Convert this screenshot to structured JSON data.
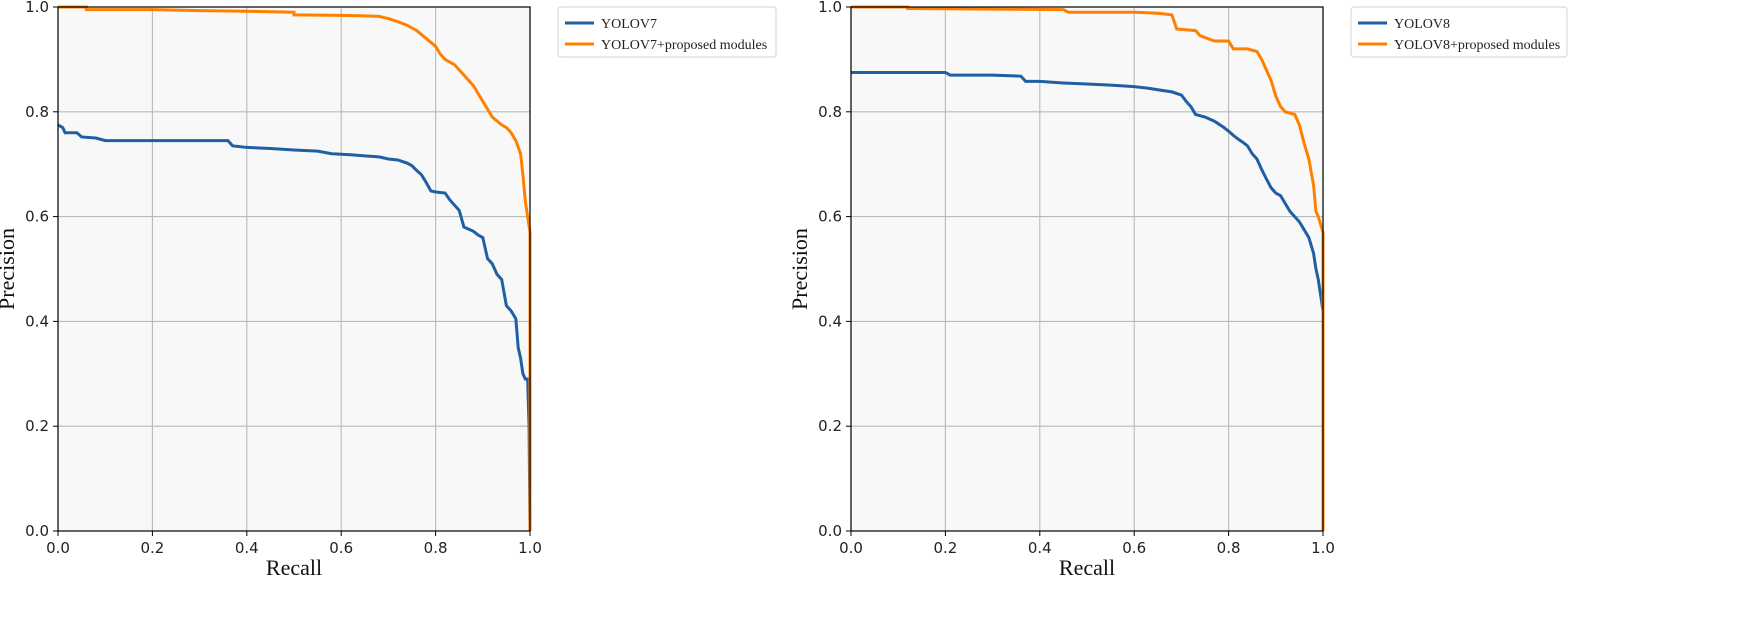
{
  "chart_data": [
    {
      "type": "line",
      "title": "",
      "xlabel": "Recall",
      "ylabel": "Precision",
      "xlim": [
        0.0,
        1.0
      ],
      "ylim": [
        0.0,
        1.0
      ],
      "xticks": [
        "0.0",
        "0.2",
        "0.4",
        "0.6",
        "0.8",
        "1.0"
      ],
      "yticks": [
        "0.0",
        "0.2",
        "0.4",
        "0.6",
        "0.8",
        "1.0"
      ],
      "grid": true,
      "legend_position": "outside-right-top",
      "series": [
        {
          "name": "YOLOV7",
          "color": "#1f5fa3",
          "points": [
            [
              0.0,
              0.775
            ],
            [
              0.01,
              0.77
            ],
            [
              0.015,
              0.76
            ],
            [
              0.04,
              0.76
            ],
            [
              0.05,
              0.752
            ],
            [
              0.08,
              0.75
            ],
            [
              0.1,
              0.745
            ],
            [
              0.2,
              0.745
            ],
            [
              0.36,
              0.745
            ],
            [
              0.37,
              0.735
            ],
            [
              0.4,
              0.732
            ],
            [
              0.45,
              0.73
            ],
            [
              0.5,
              0.727
            ],
            [
              0.55,
              0.725
            ],
            [
              0.58,
              0.72
            ],
            [
              0.62,
              0.718
            ],
            [
              0.65,
              0.716
            ],
            [
              0.68,
              0.714
            ],
            [
              0.7,
              0.71
            ],
            [
              0.72,
              0.708
            ],
            [
              0.74,
              0.702
            ],
            [
              0.75,
              0.697
            ],
            [
              0.76,
              0.688
            ],
            [
              0.77,
              0.68
            ],
            [
              0.78,
              0.665
            ],
            [
              0.79,
              0.649
            ],
            [
              0.8,
              0.647
            ],
            [
              0.82,
              0.645
            ],
            [
              0.83,
              0.632
            ],
            [
              0.84,
              0.622
            ],
            [
              0.85,
              0.612
            ],
            [
              0.86,
              0.58
            ],
            [
              0.87,
              0.576
            ],
            [
              0.88,
              0.572
            ],
            [
              0.89,
              0.565
            ],
            [
              0.9,
              0.56
            ],
            [
              0.91,
              0.52
            ],
            [
              0.92,
              0.51
            ],
            [
              0.93,
              0.49
            ],
            [
              0.94,
              0.48
            ],
            [
              0.95,
              0.43
            ],
            [
              0.96,
              0.42
            ],
            [
              0.97,
              0.405
            ],
            [
              0.975,
              0.35
            ],
            [
              0.98,
              0.33
            ],
            [
              0.985,
              0.3
            ],
            [
              0.99,
              0.29
            ],
            [
              0.995,
              0.29
            ],
            [
              0.998,
              0.2
            ],
            [
              1.0,
              0.0
            ]
          ]
        },
        {
          "name": "YOLOV7+proposed modules",
          "color": "#ff8000",
          "points": [
            [
              0.0,
              1.0
            ],
            [
              0.06,
              1.0
            ],
            [
              0.06,
              0.995
            ],
            [
              0.2,
              0.995
            ],
            [
              0.3,
              0.993
            ],
            [
              0.4,
              0.992
            ],
            [
              0.5,
              0.99
            ],
            [
              0.5,
              0.985
            ],
            [
              0.6,
              0.984
            ],
            [
              0.65,
              0.983
            ],
            [
              0.68,
              0.982
            ],
            [
              0.7,
              0.978
            ],
            [
              0.72,
              0.972
            ],
            [
              0.74,
              0.965
            ],
            [
              0.76,
              0.955
            ],
            [
              0.78,
              0.94
            ],
            [
              0.8,
              0.925
            ],
            [
              0.81,
              0.91
            ],
            [
              0.82,
              0.9
            ],
            [
              0.84,
              0.89
            ],
            [
              0.86,
              0.87
            ],
            [
              0.88,
              0.85
            ],
            [
              0.9,
              0.82
            ],
            [
              0.92,
              0.79
            ],
            [
              0.94,
              0.775
            ],
            [
              0.95,
              0.77
            ],
            [
              0.96,
              0.76
            ],
            [
              0.97,
              0.745
            ],
            [
              0.98,
              0.72
            ],
            [
              0.985,
              0.68
            ],
            [
              0.99,
              0.63
            ],
            [
              0.995,
              0.6
            ],
            [
              1.0,
              0.57
            ],
            [
              1.0,
              0.0
            ]
          ]
        }
      ]
    },
    {
      "type": "line",
      "title": "",
      "xlabel": "Recall",
      "ylabel": "Precision",
      "xlim": [
        0.0,
        1.0
      ],
      "ylim": [
        0.0,
        1.0
      ],
      "xticks": [
        "0.0",
        "0.2",
        "0.4",
        "0.6",
        "0.8",
        "1.0"
      ],
      "yticks": [
        "0.0",
        "0.2",
        "0.4",
        "0.6",
        "0.8",
        "1.0"
      ],
      "grid": true,
      "legend_position": "outside-right-top",
      "series": [
        {
          "name": "YOLOV8",
          "color": "#1f5fa3",
          "points": [
            [
              0.0,
              0.875
            ],
            [
              0.1,
              0.875
            ],
            [
              0.2,
              0.875
            ],
            [
              0.21,
              0.87
            ],
            [
              0.3,
              0.87
            ],
            [
              0.36,
              0.868
            ],
            [
              0.37,
              0.858
            ],
            [
              0.4,
              0.858
            ],
            [
              0.45,
              0.855
            ],
            [
              0.5,
              0.853
            ],
            [
              0.55,
              0.851
            ],
            [
              0.6,
              0.848
            ],
            [
              0.63,
              0.845
            ],
            [
              0.65,
              0.842
            ],
            [
              0.68,
              0.838
            ],
            [
              0.7,
              0.832
            ],
            [
              0.71,
              0.82
            ],
            [
              0.72,
              0.81
            ],
            [
              0.73,
              0.795
            ],
            [
              0.75,
              0.79
            ],
            [
              0.77,
              0.782
            ],
            [
              0.79,
              0.77
            ],
            [
              0.8,
              0.763
            ],
            [
              0.81,
              0.755
            ],
            [
              0.82,
              0.748
            ],
            [
              0.83,
              0.742
            ],
            [
              0.84,
              0.735
            ],
            [
              0.85,
              0.72
            ],
            [
              0.86,
              0.71
            ],
            [
              0.87,
              0.69
            ],
            [
              0.88,
              0.672
            ],
            [
              0.89,
              0.655
            ],
            [
              0.9,
              0.645
            ],
            [
              0.91,
              0.64
            ],
            [
              0.92,
              0.625
            ],
            [
              0.93,
              0.61
            ],
            [
              0.94,
              0.6
            ],
            [
              0.95,
              0.59
            ],
            [
              0.96,
              0.575
            ],
            [
              0.97,
              0.56
            ],
            [
              0.98,
              0.53
            ],
            [
              0.985,
              0.5
            ],
            [
              0.99,
              0.48
            ],
            [
              0.995,
              0.45
            ],
            [
              1.0,
              0.42
            ],
            [
              1.0,
              0.0
            ]
          ]
        },
        {
          "name": "YOLOV8+proposed modules",
          "color": "#ff8000",
          "points": [
            [
              0.0,
              1.0
            ],
            [
              0.12,
              1.0
            ],
            [
              0.12,
              0.997
            ],
            [
              0.3,
              0.996
            ],
            [
              0.45,
              0.995
            ],
            [
              0.46,
              0.99
            ],
            [
              0.6,
              0.99
            ],
            [
              0.65,
              0.988
            ],
            [
              0.68,
              0.985
            ],
            [
              0.69,
              0.958
            ],
            [
              0.73,
              0.955
            ],
            [
              0.74,
              0.945
            ],
            [
              0.77,
              0.935
            ],
            [
              0.8,
              0.935
            ],
            [
              0.81,
              0.92
            ],
            [
              0.84,
              0.92
            ],
            [
              0.86,
              0.915
            ],
            [
              0.87,
              0.9
            ],
            [
              0.88,
              0.88
            ],
            [
              0.89,
              0.86
            ],
            [
              0.9,
              0.83
            ],
            [
              0.91,
              0.81
            ],
            [
              0.92,
              0.8
            ],
            [
              0.94,
              0.795
            ],
            [
              0.95,
              0.775
            ],
            [
              0.96,
              0.74
            ],
            [
              0.97,
              0.71
            ],
            [
              0.98,
              0.66
            ],
            [
              0.985,
              0.61
            ],
            [
              0.99,
              0.6
            ],
            [
              1.0,
              0.57
            ],
            [
              1.0,
              0.0
            ]
          ]
        }
      ]
    }
  ]
}
